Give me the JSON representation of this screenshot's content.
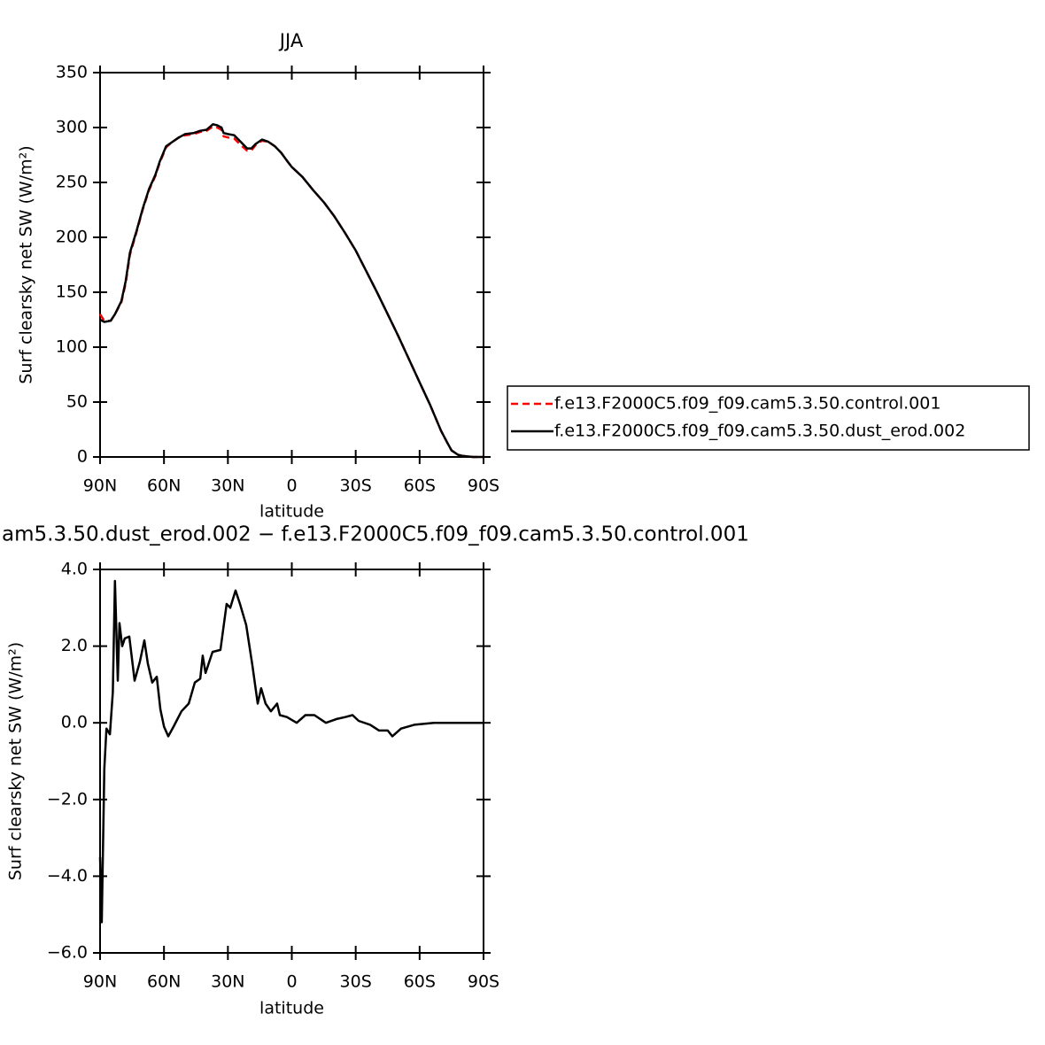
{
  "chart_data": [
    {
      "type": "line",
      "title": "JJA",
      "xlabel": "latitude",
      "ylabel": "Surf clearsky net SW (W/m²)",
      "x": [
        90,
        88,
        85,
        83,
        80,
        78,
        76,
        73,
        70,
        67,
        64,
        62,
        59,
        56,
        53,
        50,
        46,
        43,
        40,
        37,
        35,
        33,
        32,
        30,
        27,
        24,
        21,
        19,
        17,
        14,
        11,
        8,
        5,
        2,
        0,
        -5,
        -10,
        -15,
        -20,
        -25,
        -30,
        -35,
        -40,
        -45,
        -50,
        -55,
        -60,
        -65,
        -70,
        -73,
        -75,
        -78,
        -80,
        -85,
        -90
      ],
      "series": [
        {
          "name": "f.e13.F2000C5.f09_f09.cam5.3.50.control.001",
          "color": "#ff0000",
          "style": "dashed",
          "values": [
            130,
            124,
            124,
            130,
            141,
            158,
            184,
            204,
            225,
            243,
            256,
            268,
            282,
            287,
            291,
            293,
            294,
            296,
            297,
            301,
            300,
            298,
            292,
            291,
            290,
            284,
            279,
            279,
            284,
            288,
            287,
            283,
            277,
            269,
            264,
            255,
            243,
            232,
            219,
            204,
            188,
            169,
            150,
            130,
            110,
            89,
            68,
            47,
            24,
            13,
            6,
            2,
            1,
            0,
            0
          ]
        },
        {
          "name": "f.e13.F2000C5.f09_f09.cam5.3.50.dust_erod.002",
          "color": "#000000",
          "style": "solid",
          "values": [
            125,
            123,
            124,
            130,
            142,
            160,
            186,
            205,
            226,
            244,
            257,
            269,
            283,
            287,
            291,
            294,
            295,
            297,
            298,
            303,
            302,
            300,
            295,
            294,
            293,
            287,
            281,
            281,
            285,
            289,
            287,
            283,
            277,
            269,
            264,
            255,
            243,
            232,
            219,
            204,
            188,
            169,
            150,
            130,
            110,
            89,
            68,
            47,
            24,
            13,
            6,
            2,
            1,
            0,
            0
          ]
        }
      ],
      "xlim": [
        90,
        -90
      ],
      "xticks": [
        {
          "value": 90,
          "label": "90N"
        },
        {
          "value": 60,
          "label": "60N"
        },
        {
          "value": 30,
          "label": "30N"
        },
        0,
        {
          "value": -30,
          "label": "30S"
        },
        {
          "value": -60,
          "label": "60S"
        },
        {
          "value": -90,
          "label": "90S"
        }
      ],
      "ylim": [
        0,
        350
      ],
      "yticks": [
        0,
        50,
        100,
        150,
        200,
        250,
        300,
        350
      ],
      "legend": "right"
    },
    {
      "type": "line",
      "title": "am5.3.50.dust_erod.002 − f.e13.F2000C5.f09_f09.cam5.3.50.control.001",
      "xlabel": "latitude",
      "ylabel": "Surf clearsky net SW (W/m²)",
      "x": [
        90,
        89.2,
        88,
        87,
        85.4,
        84,
        83,
        81.7,
        80.9,
        79.6,
        78.4,
        76.3,
        73.8,
        71.3,
        69.2,
        67.6,
        65.5,
        63.4,
        61.7,
        60,
        58,
        55.5,
        51.8,
        48.4,
        45.5,
        43,
        41.8,
        40.5,
        37.2,
        33.5,
        30.6,
        28.9,
        26.4,
        24.3,
        21.4,
        18.5,
        16,
        14.4,
        12.3,
        9.8,
        6.9,
        5.6,
        2.3,
        -2.3,
        -6.4,
        -10.6,
        -16,
        -21,
        -25.1,
        -28.5,
        -31.4,
        -36.8,
        -41,
        -45,
        -47.2,
        -51.3,
        -57.5,
        -66.7,
        -90
      ],
      "values": [
        -3.5,
        -5.2,
        -1.2,
        -0.15,
        -0.3,
        0.8,
        3.7,
        1.1,
        2.6,
        2.0,
        2.2,
        2.25,
        1.1,
        1.6,
        2.15,
        1.55,
        1.05,
        1.2,
        0.35,
        -0.1,
        -0.35,
        -0.1,
        0.3,
        0.5,
        1.05,
        1.15,
        1.75,
        1.3,
        1.85,
        1.9,
        3.1,
        3.0,
        3.45,
        3.1,
        2.55,
        1.5,
        0.5,
        0.9,
        0.5,
        0.3,
        0.5,
        0.2,
        0.15,
        0.0,
        0.2,
        0.2,
        0.0,
        0.1,
        0.15,
        0.2,
        0.05,
        -0.05,
        -0.2,
        -0.2,
        -0.35,
        -0.15,
        -0.05,
        0,
        0
      ],
      "color": "#000000",
      "xlim": [
        90,
        -90
      ],
      "xticks": [
        {
          "value": 90,
          "label": "90N"
        },
        {
          "value": 60,
          "label": "60N"
        },
        {
          "value": 30,
          "label": "30N"
        },
        0,
        {
          "value": -30,
          "label": "30S"
        },
        {
          "value": -60,
          "label": "60S"
        },
        {
          "value": -90,
          "label": "90S"
        }
      ],
      "ylim": [
        -6,
        4
      ],
      "yticks": [
        {
          "value": -6,
          "label": "−6.0"
        },
        {
          "value": -4,
          "label": "−4.0"
        },
        {
          "value": -2,
          "label": "−2.0"
        },
        {
          "value": 0,
          "label": "0.0"
        },
        {
          "value": 2,
          "label": "2.0"
        },
        {
          "value": 4,
          "label": "4.0"
        }
      ]
    }
  ]
}
